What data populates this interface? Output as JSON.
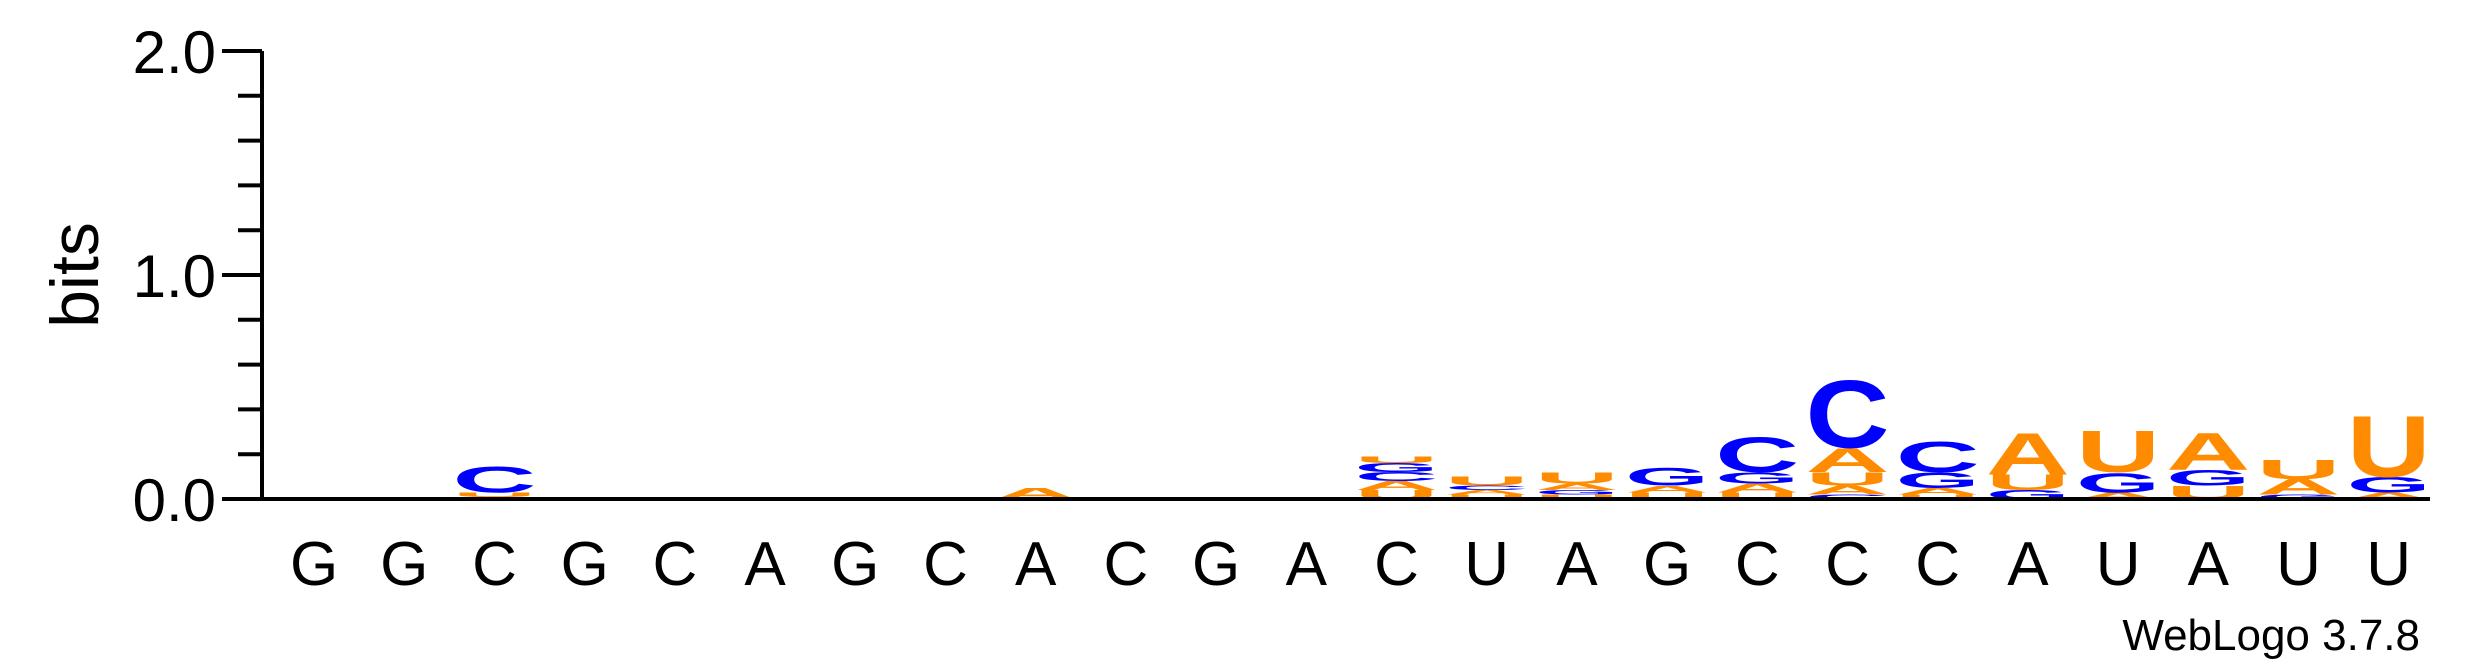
{
  "chart_data": {
    "type": "sequence-logo",
    "title": "",
    "xlabel": "",
    "ylabel": "bits",
    "ylim": [
      0,
      2.0
    ],
    "yticks": [
      "0.0",
      "1.0",
      "2.0"
    ],
    "sequence": [
      "G",
      "G",
      "C",
      "G",
      "C",
      "A",
      "G",
      "C",
      "A",
      "C",
      "G",
      "A",
      "C",
      "U",
      "A",
      "G",
      "C",
      "C",
      "C",
      "A",
      "U",
      "A",
      "U",
      "U"
    ],
    "colors": {
      "A": "#ff8c00",
      "C": "#0000ff",
      "G": "#0000ff",
      "U": "#ff8c00"
    },
    "columns": [
      [],
      [],
      [
        [
          "A",
          0.01
        ],
        [
          "U",
          0.02
        ],
        [
          "C",
          0.12
        ]
      ],
      [],
      [],
      [],
      [],
      [],
      [
        [
          "A",
          0.05
        ]
      ],
      [],
      [],
      [],
      [
        [
          "U",
          0.04
        ],
        [
          "A",
          0.04
        ],
        [
          "C",
          0.04
        ],
        [
          "G",
          0.04
        ],
        [
          "U",
          0.03
        ]
      ],
      [
        [
          "U",
          0.02
        ],
        [
          "A",
          0.02
        ],
        [
          "C",
          0.02
        ],
        [
          "U",
          0.04
        ]
      ],
      [
        [
          "U",
          0.02
        ],
        [
          "G",
          0.02
        ],
        [
          "A",
          0.03
        ],
        [
          "U",
          0.05
        ]
      ],
      [
        [
          "U",
          0.03
        ],
        [
          "A",
          0.03
        ],
        [
          "G",
          0.08
        ]
      ],
      [
        [
          "U",
          0.03
        ],
        [
          "A",
          0.04
        ],
        [
          "G",
          0.05
        ],
        [
          "C",
          0.16
        ]
      ],
      [
        [
          "C",
          0.02
        ],
        [
          "A",
          0.04
        ],
        [
          "U",
          0.06
        ],
        [
          "A",
          0.11
        ],
        [
          "C",
          0.31
        ]
      ],
      [
        [
          "U",
          0.02
        ],
        [
          "A",
          0.03
        ],
        [
          "G",
          0.07
        ],
        [
          "C",
          0.14
        ]
      ],
      [
        [
          "G",
          0.04
        ],
        [
          "U",
          0.07
        ],
        [
          "A",
          0.19
        ]
      ],
      [
        [
          "A",
          0.03
        ],
        [
          "G",
          0.09
        ],
        [
          "U",
          0.19
        ]
      ],
      [
        [
          "U",
          0.06
        ],
        [
          "G",
          0.07
        ],
        [
          "A",
          0.17
        ]
      ],
      [
        [
          "G",
          0.02
        ],
        [
          "A",
          0.07
        ],
        [
          "U",
          0.09
        ]
      ],
      [
        [
          "A",
          0.03
        ],
        [
          "G",
          0.07
        ],
        [
          "U",
          0.28
        ]
      ]
    ]
  },
  "credit": "WebLogo 3.7.8"
}
